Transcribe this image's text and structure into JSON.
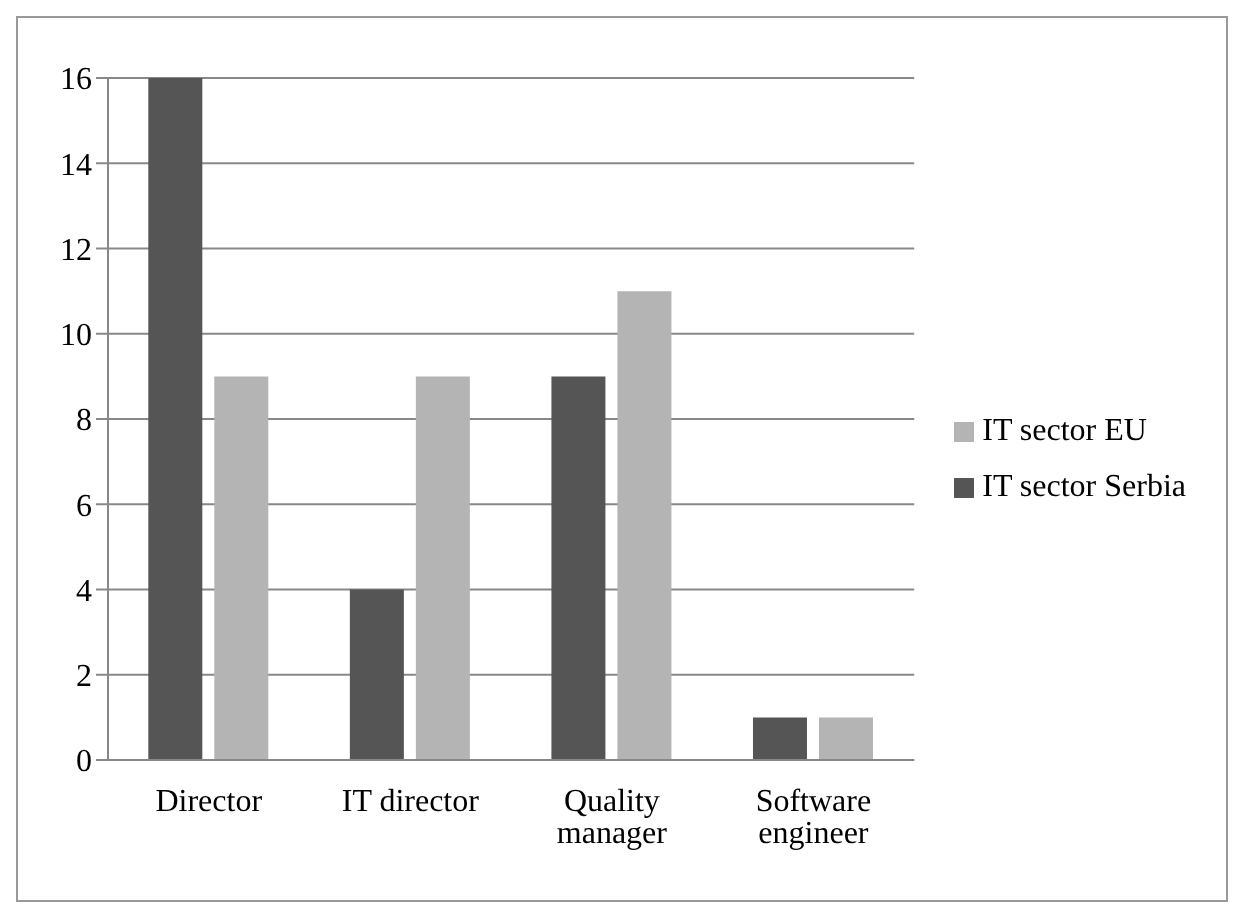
{
  "chart_data": {
    "type": "bar",
    "categories": [
      "Director",
      "IT director",
      "Quality manager",
      "Software engineer"
    ],
    "series": [
      {
        "name": "IT sector Serbia",
        "color": "#555555",
        "values": [
          16,
          4,
          9,
          1
        ]
      },
      {
        "name": "IT sector EU",
        "color": "#b4b4b4",
        "values": [
          9,
          9,
          11,
          1
        ]
      }
    ],
    "ylim": [
      0,
      16
    ],
    "yticks": [
      0,
      2,
      4,
      6,
      8,
      10,
      12,
      14,
      16
    ],
    "grid": "y",
    "legend": "right"
  }
}
